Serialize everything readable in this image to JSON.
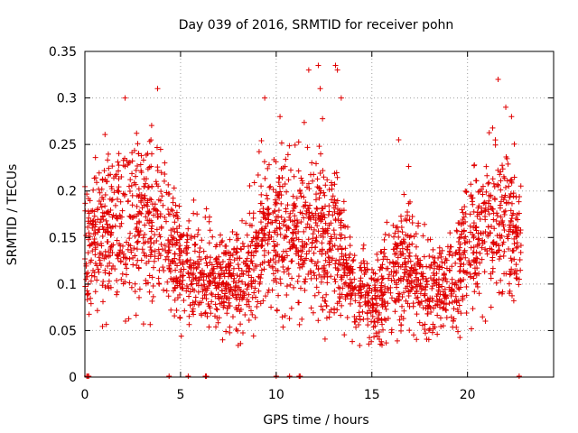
{
  "chart_data": {
    "type": "scatter",
    "title": "Day 039 of 2016, SRMTID for receiver pohn",
    "xlabel": "GPS time / hours",
    "ylabel": "SRMTID / TECUs",
    "xlim": [
      0,
      24.5
    ],
    "ylim": [
      0,
      0.35
    ],
    "xticks": [
      0,
      5,
      10,
      15,
      20
    ],
    "xtick_labels": [
      "0",
      "5",
      "10",
      "15",
      "20"
    ],
    "yticks": [
      0,
      0.05,
      0.1,
      0.15,
      0.2,
      0.25,
      0.3,
      0.35
    ],
    "ytick_labels": [
      "0",
      "0.05",
      "0.1",
      "0.15",
      "0.2",
      "0.25",
      "0.3",
      "0.35"
    ],
    "grid": true,
    "marker": "+",
    "color": "#e00000",
    "envelope": {
      "hours": [
        0,
        1,
        2,
        3,
        4,
        5,
        6,
        7,
        8,
        9,
        10,
        11,
        12,
        13,
        14,
        15,
        16,
        17,
        18,
        19,
        20,
        21,
        22,
        22.8
      ],
      "mean_tecu": [
        0.145,
        0.15,
        0.16,
        0.165,
        0.16,
        0.12,
        0.115,
        0.105,
        0.1,
        0.14,
        0.16,
        0.155,
        0.16,
        0.15,
        0.09,
        0.085,
        0.11,
        0.125,
        0.09,
        0.1,
        0.14,
        0.16,
        0.17,
        0.14
      ],
      "spread_tecu": [
        0.045,
        0.05,
        0.055,
        0.055,
        0.05,
        0.04,
        0.04,
        0.035,
        0.035,
        0.05,
        0.055,
        0.055,
        0.06,
        0.06,
        0.035,
        0.03,
        0.04,
        0.045,
        0.035,
        0.035,
        0.05,
        0.055,
        0.06,
        0.04
      ],
      "point_count": 2600
    },
    "outliers": {
      "x": [
        2.1,
        3.8,
        9.4,
        10.2,
        11.7,
        12.2,
        12.3,
        13.1,
        13.2,
        13.4,
        21.6,
        22.0,
        22.3,
        16.4,
        7.2
      ],
      "y": [
        0.3,
        0.31,
        0.3,
        0.28,
        0.33,
        0.335,
        0.31,
        0.335,
        0.33,
        0.3,
        0.32,
        0.29,
        0.28,
        0.255,
        0.04
      ]
    },
    "zeros_x": [
      0.1,
      0.15,
      0.2,
      4.4,
      5.4,
      6.3,
      6.35,
      10.0,
      10.7,
      11.2,
      11.25,
      22.7
    ]
  }
}
